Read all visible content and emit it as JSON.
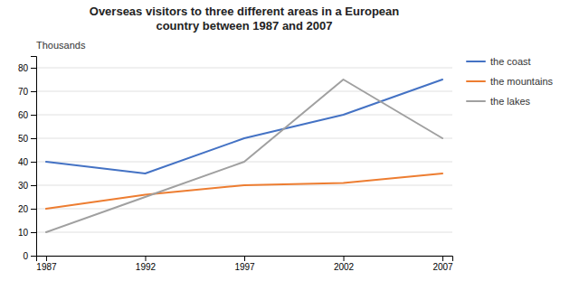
{
  "chart_data": {
    "type": "line",
    "title": "Overseas visitors to three different areas in a European\ncountry between 1987 and 2007",
    "annotations": [
      "Thousands"
    ],
    "x": [
      1987,
      1992,
      1997,
      2002,
      2007
    ],
    "series": [
      {
        "name": "the coast",
        "color": "#4472C4",
        "values": [
          40,
          35,
          50,
          60,
          75
        ]
      },
      {
        "name": "the mountains",
        "color": "#ED7D31",
        "values": [
          20,
          26,
          30,
          31,
          35
        ]
      },
      {
        "name": "the lakes",
        "color": "#A0A0A0",
        "values": [
          10,
          25,
          40,
          75,
          50
        ]
      }
    ],
    "xlim": [
      1986.5,
      2007.5
    ],
    "xticks": [
      1987,
      1992,
      1997,
      2002,
      2007
    ],
    "ylim": [
      0,
      85
    ],
    "yticks": [
      0,
      10,
      20,
      30,
      40,
      50,
      60,
      70,
      80
    ],
    "grid": true,
    "legend": "right"
  }
}
